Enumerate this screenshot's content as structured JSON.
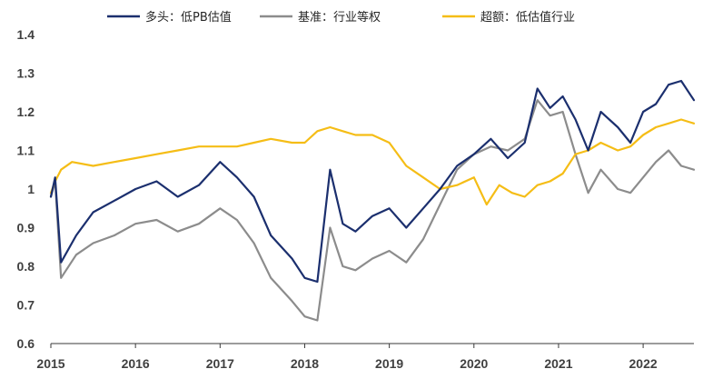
{
  "chart_data": {
    "type": "line",
    "title": "",
    "xlabel": "",
    "ylabel": "",
    "xlim": [
      2015.0,
      2022.6
    ],
    "ylim": [
      0.6,
      1.4
    ],
    "x_ticks": [
      2015,
      2016,
      2017,
      2018,
      2019,
      2020,
      2021,
      2022
    ],
    "x_tick_labels": [
      "2015",
      "2016",
      "2017",
      "2018",
      "2019",
      "2020",
      "2021",
      "2022"
    ],
    "y_ticks": [
      0.6,
      0.7,
      0.8,
      0.9,
      1.0,
      1.1,
      1.2,
      1.3,
      1.4
    ],
    "y_tick_labels": [
      "0.6",
      "0.7",
      "0.8",
      "0.9",
      "1",
      "1.1",
      "1.2",
      "1.3",
      "1.4"
    ],
    "grid": false,
    "legend_position": "top",
    "series": [
      {
        "name": "多头：低PB估值",
        "color": "#1b2f6e",
        "x": [
          2015.0,
          2015.05,
          2015.12,
          2015.3,
          2015.5,
          2015.75,
          2016.0,
          2016.25,
          2016.5,
          2016.75,
          2017.0,
          2017.2,
          2017.4,
          2017.6,
          2017.85,
          2018.0,
          2018.15,
          2018.3,
          2018.45,
          2018.6,
          2018.8,
          2019.0,
          2019.2,
          2019.4,
          2019.6,
          2019.8,
          2020.0,
          2020.2,
          2020.4,
          2020.6,
          2020.75,
          2020.9,
          2021.05,
          2021.2,
          2021.35,
          2021.5,
          2021.7,
          2021.85,
          2022.0,
          2022.15,
          2022.3,
          2022.45,
          2022.6
        ],
        "values": [
          0.98,
          1.03,
          0.81,
          0.88,
          0.94,
          0.97,
          1.0,
          1.02,
          0.98,
          1.01,
          1.07,
          1.03,
          0.98,
          0.88,
          0.82,
          0.77,
          0.76,
          1.05,
          0.91,
          0.89,
          0.93,
          0.95,
          0.9,
          0.95,
          1.0,
          1.06,
          1.09,
          1.13,
          1.08,
          1.12,
          1.26,
          1.21,
          1.24,
          1.18,
          1.1,
          1.2,
          1.16,
          1.12,
          1.2,
          1.22,
          1.27,
          1.28,
          1.23
        ]
      },
      {
        "name": "基准：行业等权",
        "color": "#8c8c8c",
        "x": [
          2015.0,
          2015.05,
          2015.12,
          2015.3,
          2015.5,
          2015.75,
          2016.0,
          2016.25,
          2016.5,
          2016.75,
          2017.0,
          2017.2,
          2017.4,
          2017.6,
          2017.85,
          2018.0,
          2018.15,
          2018.3,
          2018.45,
          2018.6,
          2018.8,
          2019.0,
          2019.2,
          2019.4,
          2019.6,
          2019.8,
          2020.0,
          2020.2,
          2020.4,
          2020.6,
          2020.75,
          2020.9,
          2021.05,
          2021.2,
          2021.35,
          2021.5,
          2021.7,
          2021.85,
          2022.0,
          2022.15,
          2022.3,
          2022.45,
          2022.6
        ],
        "values": [
          0.98,
          1.02,
          0.77,
          0.83,
          0.86,
          0.88,
          0.91,
          0.92,
          0.89,
          0.91,
          0.95,
          0.92,
          0.86,
          0.77,
          0.71,
          0.67,
          0.66,
          0.9,
          0.8,
          0.79,
          0.82,
          0.84,
          0.81,
          0.87,
          0.96,
          1.05,
          1.09,
          1.11,
          1.1,
          1.13,
          1.23,
          1.19,
          1.2,
          1.09,
          0.99,
          1.05,
          1.0,
          0.99,
          1.03,
          1.07,
          1.1,
          1.06,
          1.05
        ]
      },
      {
        "name": "超额：低估值行业",
        "color": "#f5bd16",
        "x": [
          2015.0,
          2015.05,
          2015.12,
          2015.25,
          2015.5,
          2015.75,
          2016.0,
          2016.25,
          2016.5,
          2016.75,
          2017.0,
          2017.2,
          2017.4,
          2017.6,
          2017.85,
          2018.0,
          2018.15,
          2018.3,
          2018.45,
          2018.6,
          2018.8,
          2019.0,
          2019.2,
          2019.4,
          2019.6,
          2019.8,
          2020.0,
          2020.15,
          2020.3,
          2020.45,
          2020.6,
          2020.75,
          2020.9,
          2021.05,
          2021.2,
          2021.35,
          2021.5,
          2021.7,
          2021.85,
          2022.0,
          2022.15,
          2022.3,
          2022.45,
          2022.6
        ],
        "values": [
          0.99,
          1.02,
          1.05,
          1.07,
          1.06,
          1.07,
          1.08,
          1.09,
          1.1,
          1.11,
          1.11,
          1.11,
          1.12,
          1.13,
          1.12,
          1.12,
          1.15,
          1.16,
          1.15,
          1.14,
          1.14,
          1.12,
          1.06,
          1.03,
          1.0,
          1.01,
          1.03,
          0.96,
          1.01,
          0.99,
          0.98,
          1.01,
          1.02,
          1.04,
          1.09,
          1.1,
          1.12,
          1.1,
          1.11,
          1.14,
          1.16,
          1.17,
          1.18,
          1.17
        ]
      }
    ]
  }
}
